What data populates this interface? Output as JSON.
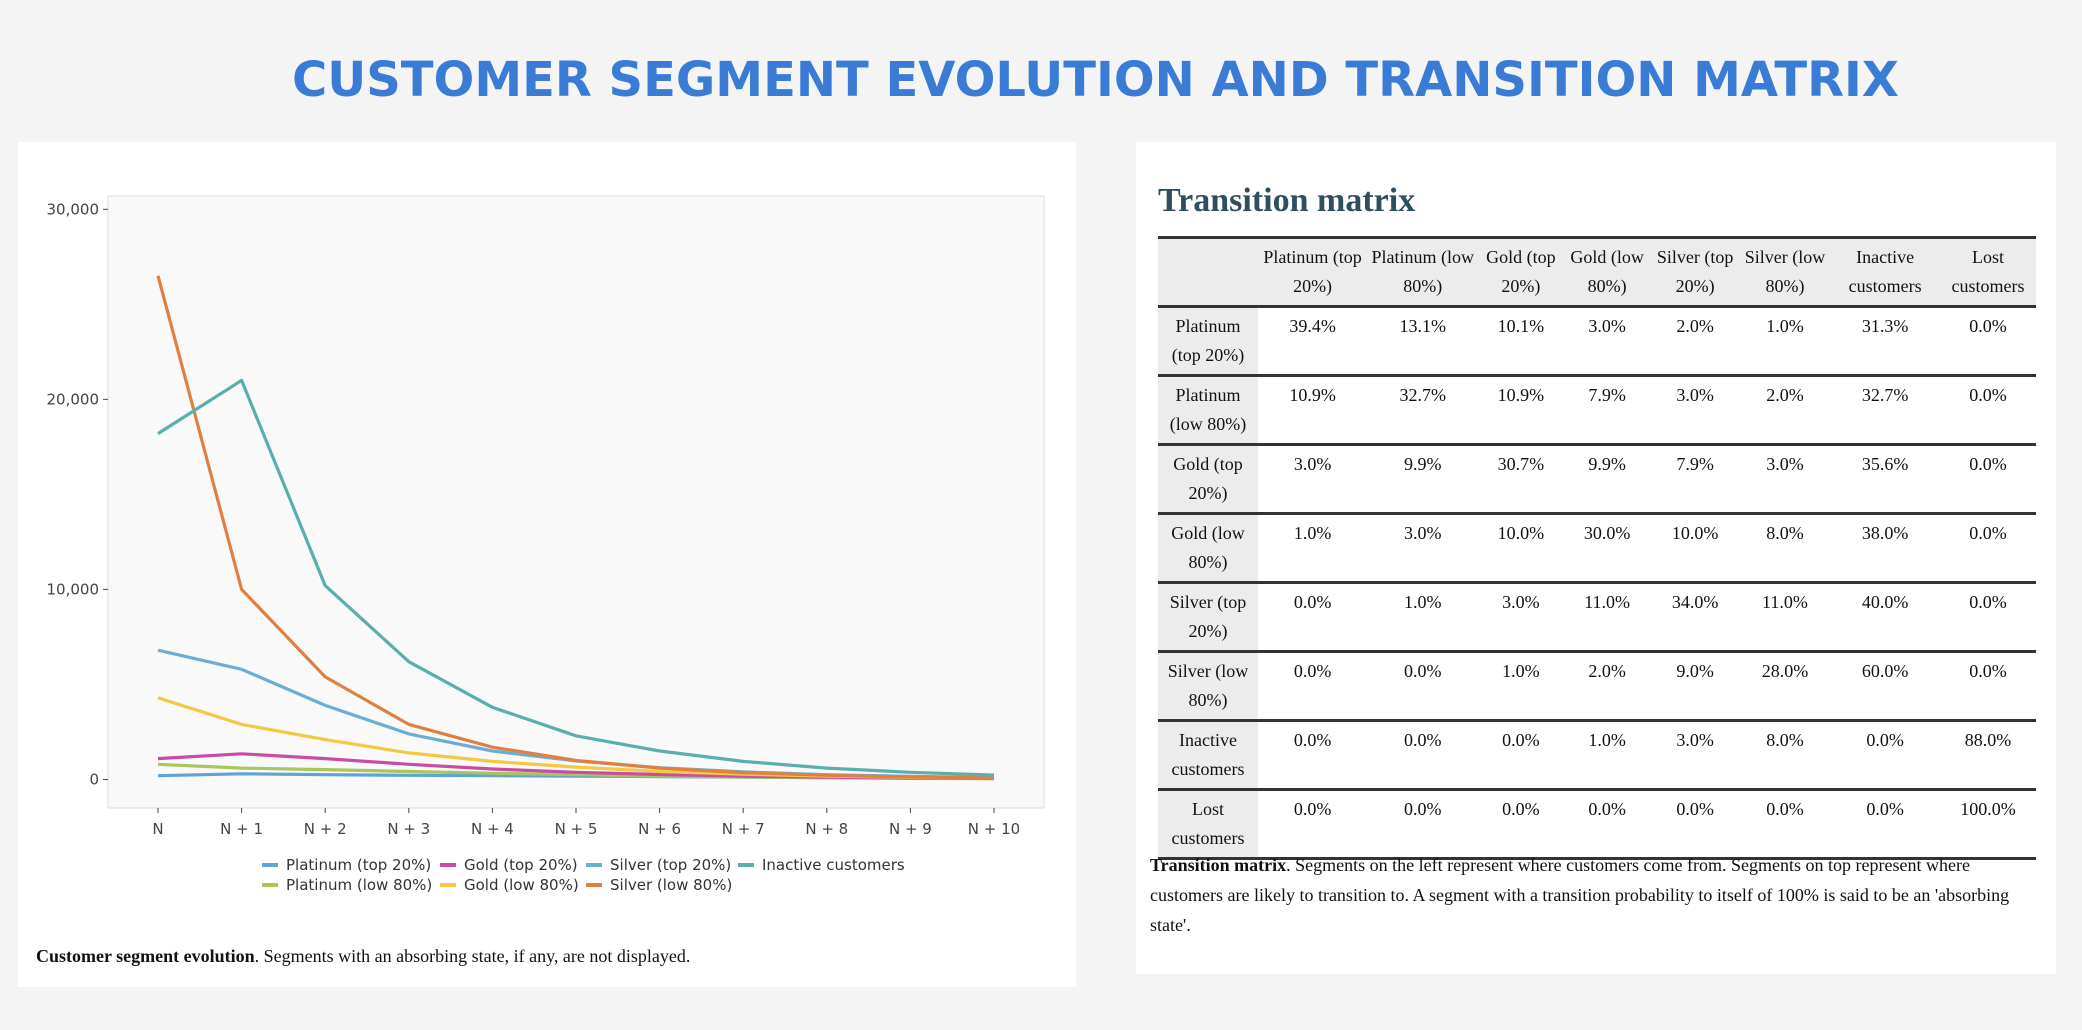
{
  "title": "CUSTOMER SEGMENT EVOLUTION AND TRANSITION MATRIX",
  "chart_data": {
    "type": "line",
    "x": [
      "N",
      "N + 1",
      "N + 2",
      "N + 3",
      "N + 4",
      "N + 5",
      "N + 6",
      "N + 7",
      "N + 8",
      "N + 9",
      "N + 10"
    ],
    "yticks": [
      "30,000",
      "20,000",
      "10,000",
      "0"
    ],
    "ytick_values": [
      30000,
      20000,
      10000,
      0
    ],
    "ylim": [
      -1500,
      30700
    ],
    "grid": false,
    "legend_position": "bottom",
    "series": [
      {
        "name": "Platinum (top 20%)",
        "color": "#5fa3d8",
        "values": [
          200,
          300,
          250,
          220,
          200,
          180,
          150,
          120,
          100,
          80,
          70
        ]
      },
      {
        "name": "Platinum (low 80%)",
        "color": "#a8c65a",
        "values": [
          800,
          600,
          520,
          420,
          330,
          250,
          180,
          130,
          90,
          60,
          40
        ]
      },
      {
        "name": "Gold (top 20%)",
        "color": "#c84ca6",
        "values": [
          1100,
          1350,
          1100,
          800,
          550,
          380,
          260,
          180,
          120,
          80,
          50
        ]
      },
      {
        "name": "Gold (low 80%)",
        "color": "#f5c842",
        "values": [
          4300,
          2900,
          2100,
          1400,
          950,
          650,
          420,
          280,
          180,
          110,
          70
        ]
      },
      {
        "name": "Silver (top 20%)",
        "color": "#6aaed6",
        "values": [
          6800,
          5800,
          3900,
          2400,
          1500,
          980,
          620,
          400,
          250,
          160,
          100
        ]
      },
      {
        "name": "Silver (low 80%)",
        "color": "#e08040",
        "values": [
          26500,
          10000,
          5400,
          2900,
          1700,
          1000,
          600,
          360,
          220,
          130,
          80
        ]
      },
      {
        "name": "Inactive customers",
        "color": "#5aaeae",
        "values": [
          18200,
          21000,
          10200,
          6200,
          3800,
          2300,
          1500,
          950,
          600,
          380,
          230
        ]
      }
    ]
  },
  "chart_caption": {
    "bold": "Customer segment evolution",
    "rest": ". Segments with an absorbing state, if any, are not displayed."
  },
  "matrix": {
    "title": "Transition matrix",
    "columns": [
      "Platinum (top 20%)",
      "Platinum (low 80%)",
      "Gold (top 20%)",
      "Gold (low 80%)",
      "Silver (top 20%)",
      "Silver (low 80%)",
      "Inactive customers",
      "Lost customers"
    ],
    "rows": [
      {
        "label": "Platinum (top 20%)",
        "values": [
          "39.4%",
          "13.1%",
          "10.1%",
          "3.0%",
          "2.0%",
          "1.0%",
          "31.3%",
          "0.0%"
        ]
      },
      {
        "label": "Platinum (low 80%)",
        "values": [
          "10.9%",
          "32.7%",
          "10.9%",
          "7.9%",
          "3.0%",
          "2.0%",
          "32.7%",
          "0.0%"
        ]
      },
      {
        "label": "Gold (top 20%)",
        "values": [
          "3.0%",
          "9.9%",
          "30.7%",
          "9.9%",
          "7.9%",
          "3.0%",
          "35.6%",
          "0.0%"
        ]
      },
      {
        "label": "Gold (low 80%)",
        "values": [
          "1.0%",
          "3.0%",
          "10.0%",
          "30.0%",
          "10.0%",
          "8.0%",
          "38.0%",
          "0.0%"
        ]
      },
      {
        "label": "Silver (top 20%)",
        "values": [
          "0.0%",
          "1.0%",
          "3.0%",
          "11.0%",
          "34.0%",
          "11.0%",
          "40.0%",
          "0.0%"
        ]
      },
      {
        "label": "Silver (low 80%)",
        "values": [
          "0.0%",
          "0.0%",
          "1.0%",
          "2.0%",
          "9.0%",
          "28.0%",
          "60.0%",
          "0.0%"
        ]
      },
      {
        "label": "Inactive customers",
        "values": [
          "0.0%",
          "0.0%",
          "0.0%",
          "1.0%",
          "3.0%",
          "8.0%",
          "0.0%",
          "88.0%"
        ]
      },
      {
        "label": "Lost customers",
        "values": [
          "0.0%",
          "0.0%",
          "0.0%",
          "0.0%",
          "0.0%",
          "0.0%",
          "0.0%",
          "100.0%"
        ]
      }
    ],
    "caption_bold": "Transition matrix",
    "caption_rest": ". Segments on the left represent where customers come from. Segments on top represent where customers are likely to transition to. A segment with a transition probability to itself of 100% is said to be an 'absorbing state'."
  }
}
